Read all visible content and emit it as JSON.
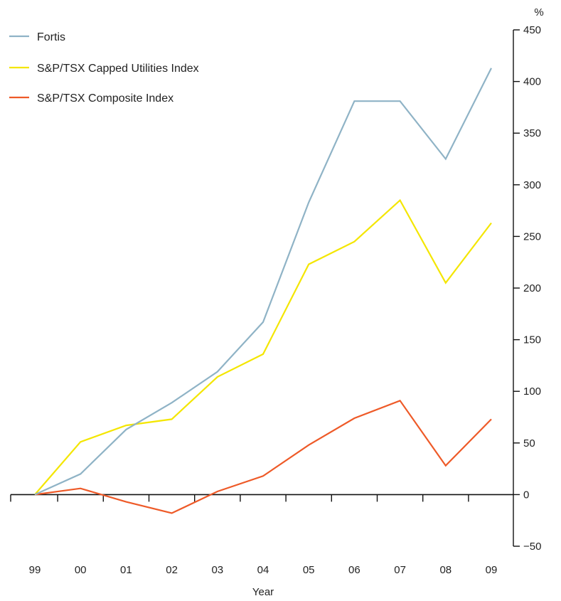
{
  "chart_data": {
    "type": "line",
    "title": "",
    "xlabel": "Year",
    "ylabel": "%",
    "categories": [
      "99",
      "00",
      "01",
      "02",
      "03",
      "04",
      "05",
      "06",
      "07",
      "08",
      "09"
    ],
    "ylim": [
      -50,
      450
    ],
    "yticks": [
      -50,
      0,
      50,
      100,
      150,
      200,
      250,
      300,
      350,
      400,
      450
    ],
    "y_axis_position": "right",
    "grid": false,
    "legend_position": "top-left",
    "series": [
      {
        "name": "Fortis",
        "color": "#8fb3c6",
        "values": [
          0,
          20,
          63,
          89,
          119,
          167,
          283,
          381,
          381,
          325,
          413
        ]
      },
      {
        "name": "S&P/TSX Capped Utilities Index",
        "color": "#f4e600",
        "values": [
          0,
          51,
          67,
          73,
          114,
          136,
          223,
          245,
          285,
          205,
          263
        ]
      },
      {
        "name": "S&P/TSX Composite Index",
        "color": "#ee5a28",
        "values": [
          0,
          6,
          -7,
          -18,
          3,
          18,
          48,
          74,
          91,
          28,
          73
        ]
      }
    ]
  }
}
